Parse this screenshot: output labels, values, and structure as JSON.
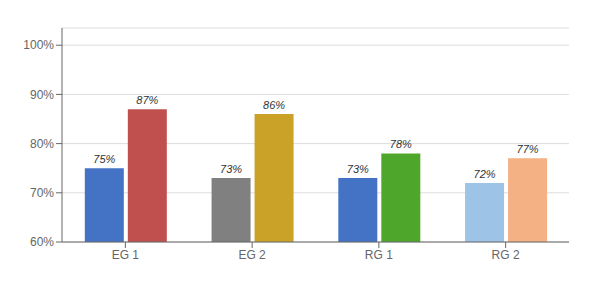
{
  "chart_data": {
    "type": "bar",
    "categories": [
      "EG 1",
      "EG 2",
      "RG 1",
      "RG 2"
    ],
    "series": [
      {
        "colors": [
          "#4472C4",
          "#808080",
          "#4472C4",
          "#9DC3E6"
        ],
        "values": [
          75,
          73,
          73,
          72
        ],
        "value_labels": [
          "75%",
          "73%",
          "73%",
          "72%"
        ]
      },
      {
        "colors": [
          "#C0504D",
          "#C9A227",
          "#4EA72A",
          "#F4B183"
        ],
        "values": [
          87,
          86,
          78,
          77
        ],
        "value_labels": [
          "87%",
          "86%",
          "78%",
          "77%"
        ]
      }
    ],
    "ylim": [
      60,
      103.5
    ],
    "yticks": [
      {
        "value": 60,
        "label": "60%"
      },
      {
        "value": 70,
        "label": "70%"
      },
      {
        "value": 80,
        "label": "80%"
      },
      {
        "value": 90,
        "label": "90%"
      },
      {
        "value": 100,
        "label": "100%"
      }
    ],
    "grid": true,
    "data_labels": true
  }
}
